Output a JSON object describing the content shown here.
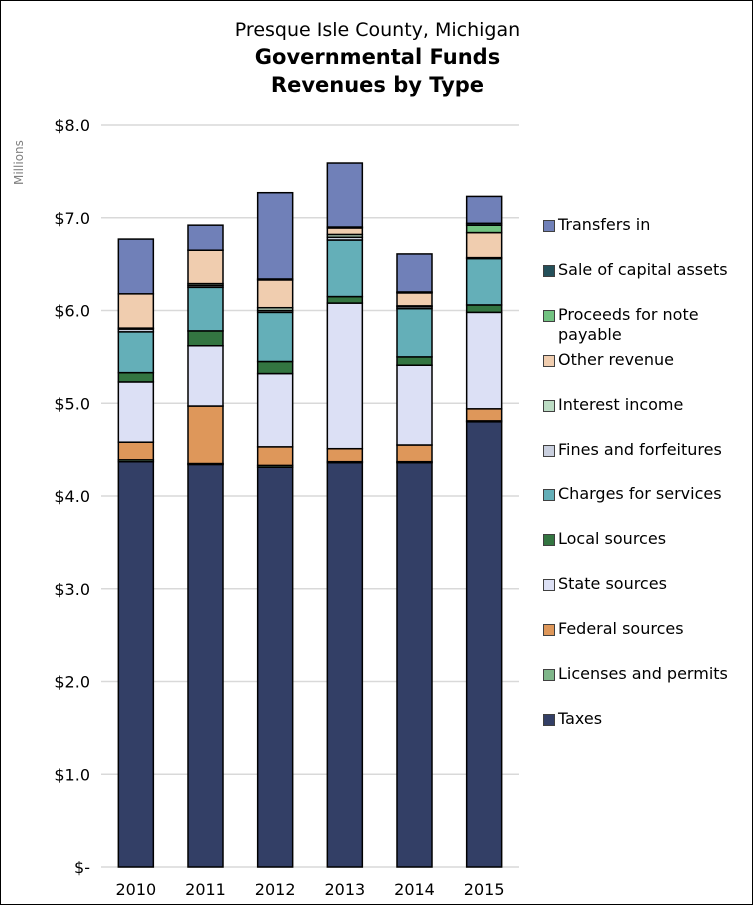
{
  "chart_data": {
    "type": "stacked-bar",
    "title": "Presque Isle County, Michigan",
    "subtitle": [
      "Governmental Funds",
      "Revenues by Type"
    ],
    "ylabel": "Millions",
    "xlabel": "",
    "ylim": [
      0,
      8
    ],
    "yticks": [
      0,
      1,
      2,
      3,
      4,
      5,
      6,
      7,
      8
    ],
    "ytick_labels": [
      "$-",
      "$1.0",
      "$2.0",
      "$3.0",
      "$4.0",
      "$5.0",
      "$6.0",
      "$7.0",
      "$8.0"
    ],
    "grid": true,
    "legend_position": "right",
    "categories": [
      "2010",
      "2011",
      "2012",
      "2013",
      "2014",
      "2015"
    ],
    "series": [
      {
        "name": "Taxes",
        "color": "#333F66",
        "values": [
          4.37,
          4.34,
          4.31,
          4.36,
          4.36,
          4.8
        ]
      },
      {
        "name": "Licenses and permits",
        "color": "#7FB68A",
        "values": [
          0.02,
          0.01,
          0.02,
          0.01,
          0.01,
          0.01
        ]
      },
      {
        "name": "Federal sources",
        "color": "#DE975A",
        "values": [
          0.19,
          0.62,
          0.2,
          0.14,
          0.18,
          0.13
        ]
      },
      {
        "name": "State sources",
        "color": "#DCE0F5",
        "values": [
          0.65,
          0.65,
          0.79,
          1.57,
          0.86,
          1.04
        ]
      },
      {
        "name": "Local sources",
        "color": "#337541",
        "values": [
          0.1,
          0.16,
          0.13,
          0.07,
          0.09,
          0.08
        ]
      },
      {
        "name": "Charges for services",
        "color": "#64AFB8",
        "values": [
          0.44,
          0.47,
          0.53,
          0.61,
          0.52,
          0.5
        ]
      },
      {
        "name": "Fines and forfeitures",
        "color": "#C9CFDE",
        "values": [
          0.03,
          0.02,
          0.02,
          0.03,
          0.02,
          0.01
        ]
      },
      {
        "name": "Interest income",
        "color": "#BCDCC4",
        "values": [
          0.01,
          0.02,
          0.03,
          0.03,
          0.01,
          0.0
        ]
      },
      {
        "name": "Other revenue",
        "color": "#F0CDAF",
        "values": [
          0.37,
          0.36,
          0.3,
          0.07,
          0.14,
          0.27
        ]
      },
      {
        "name": "Proceeds for note payable",
        "color": "#72C281",
        "values": [
          0.0,
          0.0,
          0.0,
          0.0,
          0.0,
          0.08
        ]
      },
      {
        "name": "Sale of capital assets",
        "color": "#24505A",
        "values": [
          0.0,
          0.0,
          0.01,
          0.01,
          0.01,
          0.02
        ]
      },
      {
        "name": "Transfers in",
        "color": "#7080B8",
        "values": [
          0.59,
          0.27,
          0.93,
          0.69,
          0.41,
          0.29
        ]
      }
    ]
  }
}
